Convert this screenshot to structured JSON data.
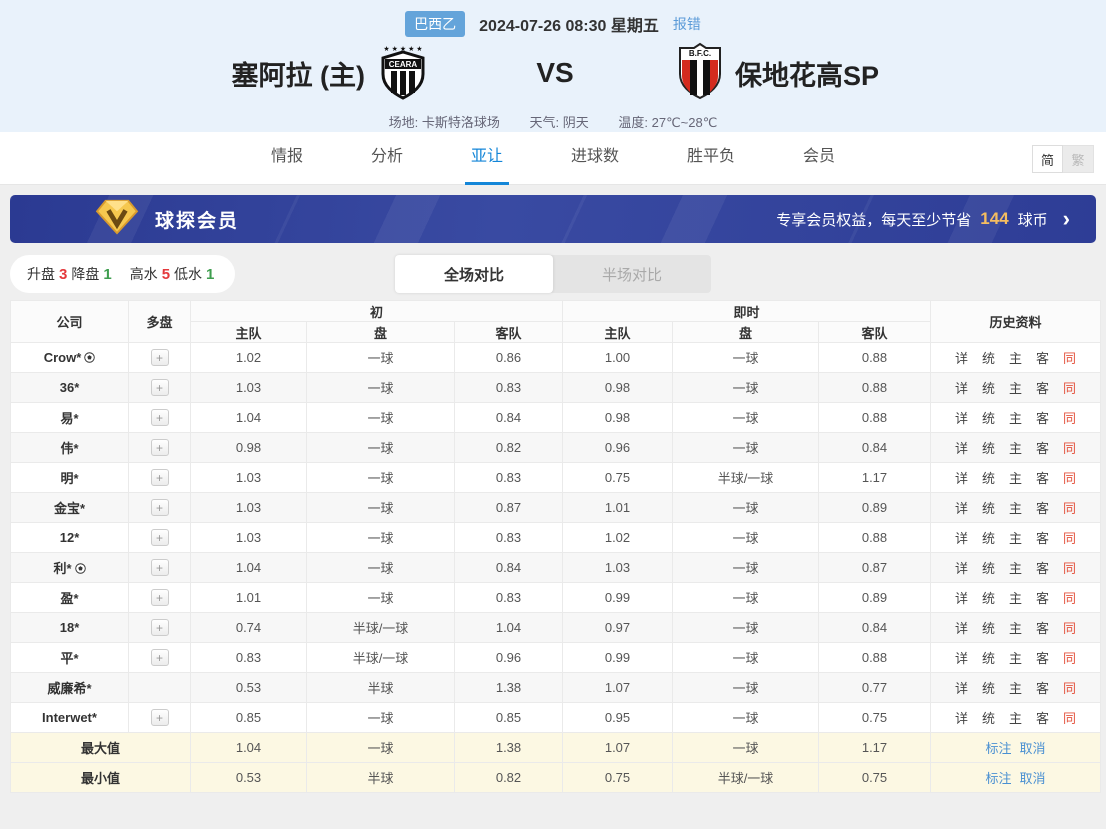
{
  "match_header": {
    "league_badge": "巴西乙",
    "datetime": "2024-07-26 08:30 星期五",
    "report_error": "报错",
    "home_team_name": "塞阿拉 (主)",
    "home_logo_text": "CEARA",
    "vs_label": "VS",
    "away_logo_text": "B.F.C.",
    "away_team_name": "保地花高SP",
    "venue": "场地: 卡斯特洛球场",
    "weather": "天气: 阴天",
    "temperature": "温度: 27℃~28℃"
  },
  "nav": {
    "tabs": [
      "情报",
      "分析",
      "亚让",
      "进球数",
      "胜平负",
      "会员"
    ],
    "active_tab": "亚让",
    "lang_simplified": "简",
    "lang_traditional": "繁"
  },
  "vip_banner": {
    "title": "球探会员",
    "promo_prefix": "专享会员权益，每天至少节省",
    "promo_value": "144",
    "promo_suffix": "球币",
    "chevron": "›"
  },
  "filters": {
    "up_label": "升盘",
    "up_value": "3",
    "down_label": "降盘",
    "down_value": "1",
    "high_label": "高水",
    "high_value": "5",
    "low_label": "低水",
    "low_value": "1",
    "full_match_label": "全场对比",
    "half_match_label": "半场对比"
  },
  "odds_table": {
    "col_company": "公司",
    "col_multi": "多盘",
    "col_initial": "初",
    "col_live": "即时",
    "col_history": "历史资料",
    "sub_home": "主队",
    "sub_handicap": "盘",
    "sub_away": "客队",
    "history_links": [
      "详",
      "统",
      "主",
      "客",
      "同"
    ],
    "rows": [
      {
        "company": "Crow*",
        "ball": true,
        "multi": true,
        "init": [
          "1.02",
          "一球",
          "0.86"
        ],
        "live": [
          "1.00",
          "一球",
          "0.88"
        ]
      },
      {
        "company": "36*",
        "ball": false,
        "multi": true,
        "init": [
          "1.03",
          "一球",
          "0.83"
        ],
        "live": [
          "0.98",
          "一球",
          "0.88"
        ]
      },
      {
        "company": "易*",
        "ball": false,
        "multi": true,
        "init": [
          "1.04",
          "一球",
          "0.84"
        ],
        "live": [
          "0.98",
          "一球",
          "0.88"
        ]
      },
      {
        "company": "伟*",
        "ball": false,
        "multi": true,
        "init": [
          "0.98",
          "一球",
          "0.82"
        ],
        "live": [
          "0.96",
          "一球",
          "0.84"
        ]
      },
      {
        "company": "明*",
        "ball": false,
        "multi": true,
        "init": [
          "1.03",
          "一球",
          "0.83"
        ],
        "live": [
          "0.75",
          "半球/一球",
          "1.17"
        ]
      },
      {
        "company": "金宝*",
        "ball": false,
        "multi": true,
        "init": [
          "1.03",
          "一球",
          "0.87"
        ],
        "live": [
          "1.01",
          "一球",
          "0.89"
        ]
      },
      {
        "company": "12*",
        "ball": false,
        "multi": true,
        "init": [
          "1.03",
          "一球",
          "0.83"
        ],
        "live": [
          "1.02",
          "一球",
          "0.88"
        ]
      },
      {
        "company": "利*",
        "ball": true,
        "multi": true,
        "init": [
          "1.04",
          "一球",
          "0.84"
        ],
        "live": [
          "1.03",
          "一球",
          "0.87"
        ]
      },
      {
        "company": "盈*",
        "ball": false,
        "multi": true,
        "init": [
          "1.01",
          "一球",
          "0.83"
        ],
        "live": [
          "0.99",
          "一球",
          "0.89"
        ]
      },
      {
        "company": "18*",
        "ball": false,
        "multi": true,
        "init": [
          "0.74",
          "半球/一球",
          "1.04"
        ],
        "live": [
          "0.97",
          "一球",
          "0.84"
        ]
      },
      {
        "company": "平*",
        "ball": false,
        "multi": true,
        "init": [
          "0.83",
          "半球/一球",
          "0.96"
        ],
        "live": [
          "0.99",
          "一球",
          "0.88"
        ]
      },
      {
        "company": "威廉希*",
        "ball": false,
        "multi": false,
        "init": [
          "0.53",
          "半球",
          "1.38"
        ],
        "live": [
          "1.07",
          "一球",
          "0.77"
        ]
      },
      {
        "company": "Interwet*",
        "ball": false,
        "multi": true,
        "init": [
          "0.85",
          "一球",
          "0.85"
        ],
        "live": [
          "0.95",
          "一球",
          "0.75"
        ]
      }
    ],
    "summary_rows": [
      {
        "label": "最大值",
        "init": [
          "1.04",
          "一球",
          "1.38"
        ],
        "live": [
          "1.07",
          "一球",
          "1.17"
        ],
        "links": [
          "标注",
          "取消"
        ]
      },
      {
        "label": "最小值",
        "init": [
          "0.53",
          "半球",
          "0.82"
        ],
        "live": [
          "0.75",
          "半球/一球",
          "0.75"
        ],
        "links": [
          "标注",
          "取消"
        ]
      }
    ],
    "colors": {
      "accent_blue": "#1486d8",
      "history_same_red": "#e4543f",
      "summary_link_blue": "#4a90d2",
      "up_red": "#e4393c",
      "down_green": "#3f9e4f",
      "badge_blue": "#64a4da",
      "banner_blue": "#2e3d96",
      "banner_gold": "#f5bd60"
    }
  }
}
